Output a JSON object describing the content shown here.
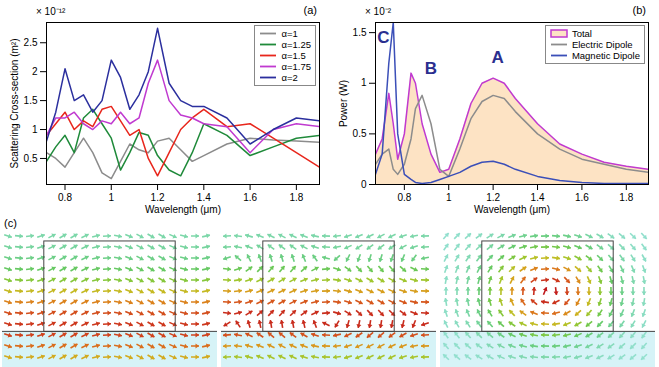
{
  "chart_data": [
    {
      "type": "line",
      "panel": "(a)",
      "x_label": "Wavelength (μm)",
      "y_label": "Scattering Cross-section (m²)",
      "y_multiplier": "× 10⁻¹²",
      "x": [
        0.72,
        0.76,
        0.8,
        0.84,
        0.88,
        0.92,
        0.96,
        1.0,
        1.04,
        1.08,
        1.12,
        1.16,
        1.2,
        1.25,
        1.3,
        1.35,
        1.4,
        1.5,
        1.6,
        1.7,
        1.8,
        1.9
      ],
      "series": [
        {
          "name": "α=1",
          "color": "#8c8c8c",
          "values": [
            0.6,
            0.5,
            0.35,
            0.6,
            0.85,
            0.6,
            0.25,
            0.15,
            0.45,
            0.75,
            0.65,
            0.6,
            0.8,
            0.85,
            0.65,
            0.45,
            0.55,
            0.75,
            0.85,
            0.82,
            0.8,
            0.78
          ]
        },
        {
          "name": "α=1.25",
          "color": "#1f8a3a",
          "values": [
            0.45,
            0.7,
            0.9,
            0.6,
            1.2,
            1.35,
            1.1,
            0.85,
            0.3,
            0.6,
            0.95,
            0.9,
            0.55,
            0.3,
            0.2,
            0.6,
            1.1,
            0.9,
            0.55,
            0.7,
            0.85,
            0.9
          ]
        },
        {
          "name": "α=1.5",
          "color": "#e8261c",
          "values": [
            0.9,
            1.1,
            1.3,
            1.0,
            1.15,
            1.05,
            1.35,
            1.4,
            1.15,
            0.9,
            1.0,
            0.5,
            0.2,
            0.6,
            1.0,
            1.2,
            1.35,
            1.05,
            1.1,
            0.85,
            0.6,
            0.35
          ]
        },
        {
          "name": "α=1.75",
          "color": "#c03ad0",
          "values": [
            0.9,
            1.2,
            1.2,
            1.3,
            1.1,
            1.0,
            1.15,
            1.1,
            1.3,
            1.1,
            1.2,
            1.8,
            2.2,
            1.5,
            1.25,
            1.2,
            1.1,
            1.05,
            0.6,
            1.0,
            1.1,
            1.05
          ]
        },
        {
          "name": "α=2",
          "color": "#2b2f9e",
          "values": [
            0.8,
            1.3,
            2.05,
            1.5,
            1.6,
            1.3,
            1.5,
            2.2,
            1.9,
            1.35,
            1.6,
            2.0,
            2.75,
            1.8,
            1.5,
            1.4,
            1.4,
            1.2,
            0.75,
            1.0,
            1.2,
            1.15
          ]
        }
      ],
      "xlim": [
        0.72,
        1.9
      ],
      "xticks": [
        0.8,
        1,
        1.2,
        1.4,
        1.6,
        1.8
      ],
      "ylim": [
        0.05,
        2.85
      ],
      "yticks": [
        0.5,
        1,
        1.5,
        2,
        2.5
      ],
      "grid": false,
      "legend": "top-right"
    },
    {
      "type": "line",
      "panel": "(b)",
      "x_label": "Wavelength (μm)",
      "y_label": "Power (W)",
      "y_multiplier": "× 10⁻²",
      "x": [
        0.67,
        0.7,
        0.73,
        0.75,
        0.77,
        0.8,
        0.83,
        0.85,
        0.88,
        0.92,
        0.96,
        1.0,
        1.05,
        1.1,
        1.15,
        1.2,
        1.25,
        1.3,
        1.4,
        1.5,
        1.6,
        1.7,
        1.8,
        1.9
      ],
      "series": [
        {
          "name": "Total",
          "type": "area",
          "color": "#c03ad0",
          "values": [
            0.3,
            0.45,
            0.9,
            0.6,
            0.25,
            0.5,
            1.1,
            1.0,
            0.6,
            0.3,
            0.12,
            0.15,
            0.45,
            0.8,
            1.0,
            1.05,
            1.0,
            0.85,
            0.6,
            0.4,
            0.3,
            0.22,
            0.18,
            0.15
          ]
        },
        {
          "name": "Electric Dipole",
          "type": "line",
          "color": "#8c8c8c",
          "values": [
            0.2,
            0.3,
            0.35,
            0.15,
            0.1,
            0.2,
            0.45,
            0.75,
            0.88,
            0.6,
            0.15,
            0.08,
            0.35,
            0.65,
            0.82,
            0.88,
            0.85,
            0.72,
            0.5,
            0.35,
            0.25,
            0.2,
            0.15,
            0.12
          ]
        },
        {
          "name": "Magnetic Dipole",
          "type": "line",
          "color": "#3b4fb8",
          "values": [
            0.1,
            0.3,
            1.2,
            1.6,
            0.5,
            0.1,
            0.05,
            0.02,
            0.01,
            0.02,
            0.05,
            0.08,
            0.12,
            0.18,
            0.22,
            0.23,
            0.2,
            0.15,
            0.08,
            0.04,
            0.02,
            0.01,
            0.01,
            0.01
          ]
        }
      ],
      "annotations": [
        {
          "text": "A",
          "x": 1.22,
          "y": 1.25
        },
        {
          "text": "B",
          "x": 0.92,
          "y": 1.15
        },
        {
          "text": "C",
          "x": 0.705,
          "y": 1.45
        }
      ],
      "xlim": [
        0.67,
        1.9
      ],
      "xticks": [
        0.8,
        1,
        1.2,
        1.4,
        1.6,
        1.8
      ],
      "ylim": [
        0,
        1.6
      ],
      "yticks": [
        0,
        0.5,
        1,
        1.5
      ],
      "grid": false,
      "legend": "top-right"
    }
  ],
  "field_maps": {
    "label": "(c)",
    "panels": 3
  }
}
